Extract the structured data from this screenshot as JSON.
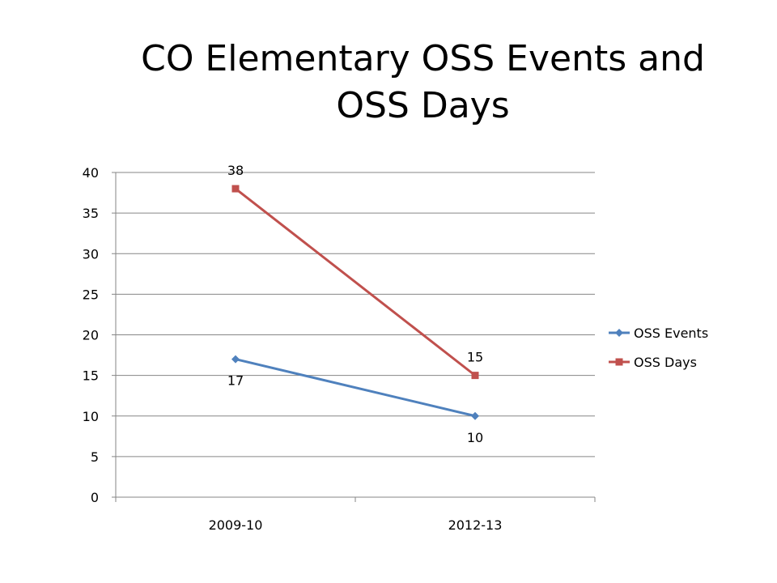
{
  "chart_data": {
    "type": "line",
    "title": "CO Elementary OSS Events and OSS Days",
    "categories": [
      "2009-10",
      "2012-13"
    ],
    "ylim": [
      0,
      40
    ],
    "ytick_step": 5,
    "y_ticks": [
      "0",
      "5",
      "10",
      "15",
      "20",
      "25",
      "30",
      "35",
      "40"
    ],
    "grid": true,
    "legend_position": "right",
    "series": [
      {
        "name": "OSS Events",
        "values": [
          17,
          10
        ],
        "color": "#4F81BD",
        "marker": "diamond",
        "label_position": "below"
      },
      {
        "name": "OSS Days",
        "values": [
          38,
          15
        ],
        "color": "#C0504D",
        "marker": "square",
        "label_position": "above"
      }
    ]
  }
}
